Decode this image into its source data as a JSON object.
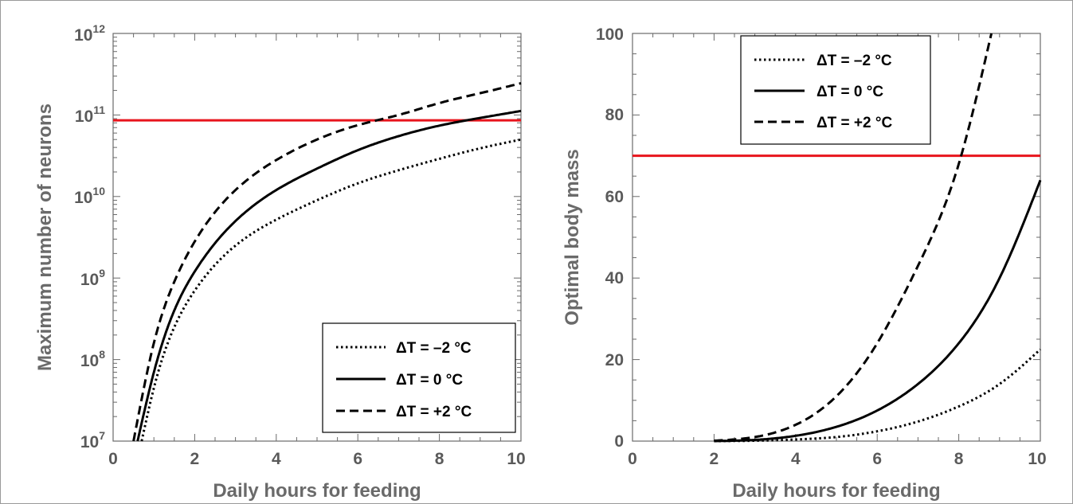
{
  "colors": {
    "threshold": "#e8141c",
    "series": "#000000",
    "axis": "#6a6a6a",
    "frame": "#9a9a9a"
  },
  "chart_data": [
    {
      "type": "line",
      "xlabel": "Daily hours for feeding",
      "ylabel": "Maximum number of neurons",
      "yscale": "log",
      "xlim": [
        0,
        10
      ],
      "ylim": [
        10000000.0,
        1000000000000.0
      ],
      "xticks": [
        "0",
        "2",
        "4",
        "6",
        "8",
        "10"
      ],
      "yticks": [
        {
          "base": "10",
          "exp": "7"
        },
        {
          "base": "10",
          "exp": "8"
        },
        {
          "base": "10",
          "exp": "9"
        },
        {
          "base": "10",
          "exp": "10"
        },
        {
          "base": "10",
          "exp": "11"
        },
        {
          "base": "10",
          "exp": "12"
        }
      ],
      "legend_position": "bottom-right",
      "hline": {
        "y": 86000000000.0,
        "color": "#e8141c"
      },
      "series": [
        {
          "name": "ΔT = –2 °C",
          "dash": "dotted",
          "x": [
            0.7,
            1,
            1.5,
            2,
            3,
            4,
            5,
            6,
            7,
            8,
            9,
            10
          ],
          "y": [
            10000000.0,
            45000000.0,
            250000000.0,
            700000000.0,
            2500000000.0,
            5200000000.0,
            9000000000.0,
            14500000000.0,
            21000000000.0,
            29000000000.0,
            39000000000.0,
            50000000000.0
          ]
        },
        {
          "name": "ΔT = 0 °C",
          "dash": "solid",
          "x": [
            0.6,
            1,
            1.5,
            2,
            3,
            4,
            5,
            6,
            7,
            8,
            9,
            10
          ],
          "y": [
            10000000.0,
            70000000.0,
            400000000.0,
            1200000000.0,
            5000000000.0,
            12000000000.0,
            22000000000.0,
            37000000000.0,
            55000000000.0,
            74000000000.0,
            92000000000.0,
            112000000000.0
          ]
        },
        {
          "name": "ΔT = +2 °C",
          "dash": "dashed",
          "x": [
            0.5,
            1,
            1.5,
            2,
            3,
            4,
            5,
            6,
            7,
            8,
            9,
            10
          ],
          "y": [
            10000000.0,
            160000000.0,
            900000000.0,
            2800000000.0,
            12000000000.0,
            28000000000.0,
            50000000000.0,
            75000000000.0,
            100000000000.0,
            140000000000.0,
            185000000000.0,
            245000000000.0
          ]
        }
      ]
    },
    {
      "type": "line",
      "xlabel": "Daily hours for feeding",
      "ylabel": "Optimal body mass",
      "xlim": [
        0,
        10
      ],
      "ylim": [
        0,
        100
      ],
      "xticks": [
        "0",
        "2",
        "4",
        "6",
        "8",
        "10"
      ],
      "yticks": [
        "0",
        "20",
        "40",
        "60",
        "80",
        "100"
      ],
      "legend_position": "top-left",
      "hline": {
        "y": 70,
        "color": "#e8141c"
      },
      "series": [
        {
          "name": "ΔT = –2 °C",
          "dash": "dotted",
          "x": [
            2,
            3,
            4,
            5,
            6,
            7,
            8,
            9,
            10
          ],
          "y": [
            0,
            0.1,
            0.4,
            1,
            2.4,
            4.8,
            8.5,
            14,
            22.5
          ]
        },
        {
          "name": "ΔT = 0 °C",
          "dash": "solid",
          "x": [
            2,
            3,
            4,
            5,
            6,
            7,
            8,
            9,
            10
          ],
          "y": [
            0,
            0.3,
            1.3,
            3.5,
            7.5,
            14,
            24,
            40,
            64
          ]
        },
        {
          "name": "ΔT = +2 °C",
          "dash": "dashed",
          "x": [
            2,
            3,
            4,
            5,
            6,
            7,
            8,
            8.4,
            8.8
          ],
          "y": [
            0.1,
            1,
            4,
            11,
            24,
            43,
            68,
            83,
            100
          ]
        }
      ]
    }
  ]
}
